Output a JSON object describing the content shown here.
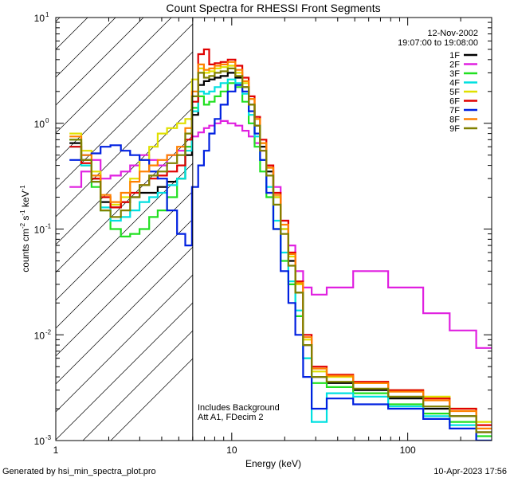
{
  "chart_data": {
    "type": "line",
    "title": "Count Spectra for RHESSI Front Segments",
    "date_label": "12-Nov-2002",
    "time_range_label": "19:07:00 to 19:08:00",
    "xlabel": "Energy (keV)",
    "ylabel": "counts cm^-2 s^-1 keV^-1",
    "x_scale": "log",
    "y_scale": "log",
    "xlim": [
      1,
      300
    ],
    "ylim": [
      0.001,
      10
    ],
    "x_ticks": [
      {
        "value": 1,
        "label": "1"
      },
      {
        "value": 10,
        "label": "10"
      },
      {
        "value": 100,
        "label": "100"
      }
    ],
    "y_ticks": [
      {
        "value": 10,
        "label": "10",
        "exp": "1"
      },
      {
        "value": 1,
        "label": "10",
        "exp": "0"
      },
      {
        "value": 0.1,
        "label": "10",
        "exp": "-1"
      },
      {
        "value": 0.01,
        "label": "10",
        "exp": "-2"
      },
      {
        "value": 0.001,
        "label": "10",
        "exp": "-3"
      }
    ],
    "hatch_region_xmax": 6,
    "annotations": [
      "Includes Background",
      "Att A1, FDecim 2"
    ],
    "footer_left": "Generated by hsi_min_spectra_plot.pro",
    "footer_right": "10-Apr-2023 17:56",
    "series": [
      {
        "name": "1F",
        "color": "#000000",
        "x": [
          1.3,
          1.5,
          1.7,
          1.9,
          2.2,
          2.5,
          2.8,
          3.2,
          3.6,
          4.0,
          4.6,
          5.2,
          5.7,
          6.2,
          6.7,
          7.2,
          7.7,
          8.3,
          9.0,
          10.0,
          11.0,
          12.0,
          13.0,
          14.0,
          15.0,
          16.5,
          18.0,
          20.0,
          22.0,
          24.0,
          27.0,
          30.0,
          40.0,
          60.0,
          100.0,
          150.0,
          200.0,
          300.0
        ],
        "y": [
          0.65,
          0.45,
          0.3,
          0.18,
          0.16,
          0.18,
          0.2,
          0.22,
          0.22,
          0.25,
          0.28,
          0.3,
          0.5,
          1.2,
          2.3,
          2.5,
          2.6,
          2.7,
          2.8,
          3.0,
          2.7,
          2.2,
          1.5,
          0.95,
          0.6,
          0.35,
          0.2,
          0.1,
          0.05,
          0.025,
          0.008,
          0.004,
          0.0035,
          0.003,
          0.0025,
          0.002,
          0.0017,
          0.0012
        ]
      },
      {
        "name": "2F",
        "color": "#e020e0",
        "x": [
          1.3,
          1.5,
          1.7,
          1.9,
          2.2,
          2.5,
          2.8,
          3.2,
          3.6,
          4.0,
          4.6,
          5.2,
          5.7,
          6.2,
          6.7,
          7.2,
          7.7,
          8.3,
          9.0,
          10.0,
          11.0,
          12.0,
          13.0,
          14.0,
          15.0,
          16.5,
          18.0,
          20.0,
          22.0,
          24.0,
          27.0,
          30.0,
          40.0,
          60.0,
          100.0,
          150.0,
          200.0,
          300.0
        ],
        "y": [
          0.25,
          0.35,
          0.45,
          0.3,
          0.32,
          0.35,
          0.4,
          0.5,
          0.45,
          0.4,
          0.5,
          0.55,
          0.6,
          0.75,
          0.82,
          0.9,
          0.95,
          1.0,
          1.05,
          1.0,
          0.95,
          0.85,
          0.75,
          0.65,
          0.55,
          0.4,
          0.25,
          0.12,
          0.07,
          0.04,
          0.028,
          0.024,
          0.028,
          0.04,
          0.028,
          0.016,
          0.011,
          0.0075
        ]
      },
      {
        "name": "3F",
        "color": "#20e020",
        "x": [
          1.3,
          1.5,
          1.7,
          1.9,
          2.2,
          2.5,
          2.8,
          3.2,
          3.6,
          4.0,
          4.6,
          5.2,
          5.7,
          6.2,
          6.7,
          7.2,
          7.7,
          8.3,
          9.0,
          10.0,
          11.0,
          12.0,
          13.0,
          14.0,
          15.0,
          16.5,
          18.0,
          20.0,
          22.0,
          24.0,
          27.0,
          30.0,
          40.0,
          60.0,
          100.0,
          150.0,
          200.0,
          300.0
        ],
        "y": [
          0.7,
          0.4,
          0.25,
          0.15,
          0.1,
          0.085,
          0.09,
          0.1,
          0.13,
          0.15,
          0.2,
          0.3,
          0.6,
          1.4,
          1.8,
          1.5,
          1.6,
          1.8,
          2.0,
          2.4,
          2.2,
          1.6,
          1.0,
          0.6,
          0.35,
          0.2,
          0.1,
          0.05,
          0.03,
          0.015,
          0.006,
          0.0035,
          0.0032,
          0.0028,
          0.0022,
          0.0018,
          0.0015,
          0.0011
        ]
      },
      {
        "name": "4F",
        "color": "#00e0e0",
        "x": [
          1.3,
          1.5,
          1.7,
          1.9,
          2.2,
          2.5,
          2.8,
          3.2,
          3.6,
          4.0,
          4.6,
          5.2,
          5.7,
          6.2,
          6.7,
          7.2,
          7.7,
          8.3,
          9.0,
          10.0,
          11.0,
          12.0,
          13.0,
          14.0,
          15.0,
          16.5,
          18.0,
          20.0,
          22.0,
          24.0,
          27.0,
          30.0,
          40.0,
          60.0,
          100.0,
          150.0,
          200.0,
          300.0
        ],
        "y": [
          0.6,
          0.4,
          0.28,
          0.16,
          0.12,
          0.13,
          0.15,
          0.18,
          0.2,
          0.22,
          0.26,
          0.3,
          0.55,
          1.3,
          2.0,
          1.9,
          2.0,
          2.2,
          2.4,
          2.6,
          2.4,
          1.9,
          1.2,
          0.75,
          0.45,
          0.25,
          0.12,
          0.06,
          0.032,
          0.017,
          0.006,
          0.0015,
          0.0028,
          0.0026,
          0.0021,
          0.0017,
          0.0014,
          0.001
        ]
      },
      {
        "name": "5F",
        "color": "#e0e000",
        "x": [
          1.3,
          1.5,
          1.7,
          1.9,
          2.2,
          2.5,
          2.8,
          3.2,
          3.6,
          4.0,
          4.6,
          5.2,
          5.7,
          6.2,
          6.7,
          7.2,
          7.7,
          8.3,
          9.0,
          10.0,
          11.0,
          12.0,
          13.0,
          14.0,
          15.0,
          16.5,
          18.0,
          20.0,
          22.0,
          24.0,
          27.0,
          30.0,
          40.0,
          60.0,
          100.0,
          150.0,
          200.0,
          300.0
        ],
        "y": [
          0.8,
          0.55,
          0.35,
          0.2,
          0.17,
          0.2,
          0.3,
          0.45,
          0.6,
          0.8,
          0.9,
          1.0,
          1.1,
          2.6,
          3.3,
          3.0,
          3.1,
          3.3,
          3.4,
          3.5,
          3.0,
          2.4,
          1.7,
          1.1,
          0.65,
          0.38,
          0.2,
          0.1,
          0.055,
          0.03,
          0.009,
          0.0045,
          0.004,
          0.0035,
          0.003,
          0.0026,
          0.002,
          0.0015
        ]
      },
      {
        "name": "6F",
        "color": "#e00000",
        "x": [
          1.3,
          1.5,
          1.7,
          1.9,
          2.2,
          2.5,
          2.8,
          3.2,
          3.6,
          4.0,
          4.6,
          5.2,
          5.7,
          6.2,
          6.7,
          7.2,
          7.7,
          8.3,
          9.0,
          10.0,
          11.0,
          12.0,
          13.0,
          14.0,
          15.0,
          16.5,
          18.0,
          20.0,
          22.0,
          24.0,
          27.0,
          30.0,
          40.0,
          60.0,
          100.0,
          150.0,
          200.0,
          300.0
        ],
        "y": [
          0.6,
          0.42,
          0.3,
          0.2,
          0.16,
          0.18,
          0.22,
          0.26,
          0.3,
          0.32,
          0.35,
          0.4,
          0.7,
          1.6,
          4.5,
          5.0,
          3.6,
          3.7,
          3.8,
          4.0,
          3.5,
          2.7,
          1.8,
          1.15,
          0.7,
          0.4,
          0.22,
          0.12,
          0.06,
          0.032,
          0.01,
          0.005,
          0.0042,
          0.0036,
          0.003,
          0.0025,
          0.002,
          0.0014
        ]
      },
      {
        "name": "7F",
        "color": "#0020e0",
        "x": [
          1.3,
          1.5,
          1.7,
          1.9,
          2.2,
          2.5,
          2.8,
          3.2,
          3.6,
          4.0,
          4.6,
          5.2,
          5.7,
          6.2,
          6.7,
          7.2,
          7.7,
          8.3,
          9.0,
          10.0,
          11.0,
          12.0,
          13.0,
          14.0,
          15.0,
          16.5,
          18.0,
          20.0,
          22.0,
          24.0,
          27.0,
          30.0,
          40.0,
          60.0,
          100.0,
          150.0,
          200.0,
          300.0
        ],
        "y": [
          0.45,
          0.5,
          0.52,
          0.6,
          0.62,
          0.55,
          0.5,
          0.45,
          0.35,
          0.3,
          0.15,
          0.09,
          0.07,
          0.25,
          0.4,
          0.55,
          0.8,
          1.1,
          1.5,
          2.0,
          2.3,
          2.0,
          1.3,
          0.8,
          0.45,
          0.22,
          0.1,
          0.04,
          0.02,
          0.01,
          0.004,
          0.002,
          0.0025,
          0.0022,
          0.002,
          0.0016,
          0.0013,
          0.001
        ]
      },
      {
        "name": "8F",
        "color": "#ff8000",
        "x": [
          1.3,
          1.5,
          1.7,
          1.9,
          2.2,
          2.5,
          2.8,
          3.2,
          3.6,
          4.0,
          4.6,
          5.2,
          5.7,
          6.2,
          6.7,
          7.2,
          7.7,
          8.3,
          9.0,
          10.0,
          11.0,
          12.0,
          13.0,
          14.0,
          15.0,
          16.5,
          18.0,
          20.0,
          22.0,
          24.0,
          27.0,
          30.0,
          40.0,
          60.0,
          100.0,
          150.0,
          200.0,
          300.0
        ],
        "y": [
          0.75,
          0.5,
          0.32,
          0.21,
          0.18,
          0.22,
          0.28,
          0.35,
          0.4,
          0.45,
          0.5,
          0.6,
          0.9,
          2.0,
          3.6,
          3.2,
          3.3,
          3.5,
          3.6,
          3.8,
          3.2,
          2.5,
          1.7,
          1.1,
          0.65,
          0.38,
          0.21,
          0.11,
          0.058,
          0.031,
          0.0095,
          0.0048,
          0.0041,
          0.0035,
          0.0029,
          0.0024,
          0.0019,
          0.0013
        ]
      },
      {
        "name": "9F",
        "color": "#808000",
        "x": [
          1.3,
          1.5,
          1.7,
          1.9,
          2.2,
          2.5,
          2.8,
          3.2,
          3.6,
          4.0,
          4.6,
          5.2,
          5.7,
          6.2,
          6.7,
          7.2,
          7.7,
          8.3,
          9.0,
          10.0,
          11.0,
          12.0,
          13.0,
          14.0,
          15.0,
          16.5,
          18.0,
          20.0,
          22.0,
          24.0,
          27.0,
          30.0,
          40.0,
          60.0,
          100.0,
          150.0,
          200.0,
          300.0
        ],
        "y": [
          0.7,
          0.45,
          0.28,
          0.15,
          0.13,
          0.15,
          0.2,
          0.26,
          0.32,
          0.35,
          0.42,
          0.5,
          0.8,
          1.8,
          3.0,
          2.7,
          2.8,
          3.0,
          3.1,
          3.3,
          2.8,
          2.2,
          1.5,
          0.95,
          0.55,
          0.32,
          0.17,
          0.09,
          0.045,
          0.025,
          0.008,
          0.004,
          0.0036,
          0.0031,
          0.0026,
          0.0021,
          0.0017,
          0.0012
        ]
      }
    ]
  }
}
